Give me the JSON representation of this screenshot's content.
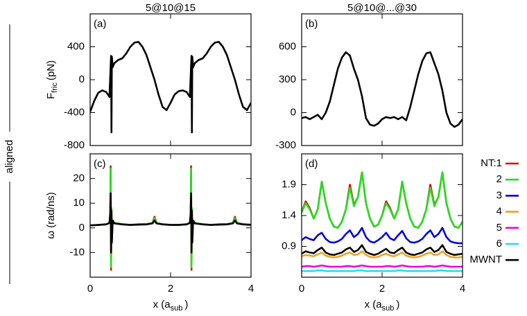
{
  "columns": [
    "5@10@15",
    "5@10@...@30"
  ],
  "row_label": "aligned",
  "chart_data": [
    {
      "type": "line",
      "label": "(a)",
      "ylabel": [
        "F",
        "fric",
        "(pN)"
      ],
      "xlim": [
        0,
        4
      ],
      "xticks": [
        0,
        2,
        4
      ],
      "show_xtick_labels": false,
      "ylim": [
        -800,
        800
      ],
      "yticks": [
        -800,
        -400,
        0,
        400
      ],
      "x": [
        0,
        0.1,
        0.2,
        0.3,
        0.4,
        0.48,
        0.52,
        0.53,
        0.54,
        0.56,
        0.6,
        0.7,
        0.8,
        0.9,
        1.0,
        1.1,
        1.2,
        1.3,
        1.4,
        1.5,
        1.6,
        1.7,
        1.8,
        1.9,
        2.0,
        2.1,
        2.2,
        2.3,
        2.4,
        2.48,
        2.52,
        2.53,
        2.54,
        2.56,
        2.6,
        2.7,
        2.8,
        2.9,
        3.0,
        3.1,
        3.2,
        3.3,
        3.4,
        3.5,
        3.6,
        3.7,
        3.8,
        3.9,
        4.0
      ],
      "series": [
        {
          "color": "#000000",
          "values": [
            -390,
            -260,
            -160,
            -130,
            -150,
            -210,
            290,
            -640,
            280,
            150,
            200,
            240,
            260,
            320,
            400,
            450,
            460,
            400,
            300,
            150,
            0,
            -180,
            -330,
            -370,
            -280,
            -180,
            -140,
            -130,
            -150,
            -210,
            290,
            -640,
            280,
            150,
            200,
            240,
            260,
            320,
            400,
            450,
            460,
            400,
            300,
            150,
            0,
            -180,
            -330,
            -370,
            -280
          ]
        }
      ]
    },
    {
      "type": "line",
      "label": "(b)",
      "xlim": [
        0,
        4
      ],
      "xticks": [
        0,
        2,
        4
      ],
      "show_xtick_labels": false,
      "ylim": [
        -300,
        900
      ],
      "yticks": [
        -300,
        0,
        300,
        600
      ],
      "x": [
        0,
        0.1,
        0.2,
        0.3,
        0.4,
        0.5,
        0.6,
        0.7,
        0.8,
        0.9,
        1.0,
        1.1,
        1.2,
        1.3,
        1.4,
        1.5,
        1.6,
        1.7,
        1.8,
        1.9,
        2.0,
        2.1,
        2.2,
        2.3,
        2.4,
        2.5,
        2.6,
        2.7,
        2.8,
        2.9,
        3.0,
        3.1,
        3.2,
        3.3,
        3.4,
        3.5,
        3.6,
        3.7,
        3.8,
        3.9,
        4.0
      ],
      "series": [
        {
          "color": "#000000",
          "values": [
            -50,
            -40,
            -60,
            -40,
            -20,
            -60,
            0,
            100,
            250,
            400,
            500,
            550,
            520,
            400,
            300,
            150,
            -50,
            -110,
            -120,
            -100,
            -60,
            -40,
            -50,
            -40,
            -60,
            -40,
            -70,
            50,
            200,
            350,
            470,
            540,
            550,
            450,
            350,
            200,
            0,
            -100,
            -130,
            -110,
            -60
          ]
        }
      ]
    },
    {
      "type": "line",
      "label": "(c)",
      "ylabel": [
        "ω (rad/ns)"
      ],
      "xlabel": [
        "x (a",
        "sub",
        ")"
      ],
      "xlim": [
        0,
        4
      ],
      "xticks": [
        0,
        2,
        4
      ],
      "show_xtick_labels": true,
      "ylim": [
        -20,
        30
      ],
      "yticks": [
        -10,
        0,
        10,
        20
      ],
      "x": [
        0,
        0.2,
        0.4,
        0.48,
        0.5,
        0.51,
        0.52,
        0.53,
        0.54,
        0.56,
        0.6,
        0.8,
        1.0,
        1.2,
        1.4,
        1.55,
        1.6,
        1.65,
        1.8,
        2.0,
        2.2,
        2.4,
        2.48,
        2.5,
        2.51,
        2.52,
        2.53,
        2.54,
        2.56,
        2.6,
        2.8,
        3.0,
        3.2,
        3.4,
        3.55,
        3.6,
        3.65,
        3.8,
        4.0
      ],
      "series": [
        {
          "color": "#e00000",
          "values": [
            1,
            1.2,
            1.5,
            2,
            5,
            25,
            -17,
            8,
            -5,
            3,
            2,
            1.5,
            1.2,
            1.5,
            1.5,
            2,
            4.5,
            2,
            1.5,
            1.2,
            1.2,
            1.5,
            2,
            5,
            25,
            -17,
            8,
            -5,
            3,
            2,
            1.5,
            1.2,
            1.5,
            1.5,
            2,
            4.5,
            2,
            1.5,
            1.3
          ]
        },
        {
          "color": "#20e020",
          "values": [
            1,
            1.2,
            1.5,
            2,
            5,
            24,
            -16,
            8,
            -5,
            3,
            2,
            1.5,
            1.2,
            1.5,
            1.5,
            2,
            4,
            2,
            1.5,
            1.2,
            1.2,
            1.5,
            2,
            5,
            24,
            -16,
            8,
            -5,
            3,
            2,
            1.5,
            1.2,
            1.5,
            1.5,
            2,
            4,
            2,
            1.5,
            1.3
          ]
        },
        {
          "color": "#000000",
          "values": [
            1,
            1.2,
            1.4,
            2,
            6,
            14,
            -10,
            7,
            -6,
            3,
            1.8,
            1.4,
            1.2,
            1.3,
            1.4,
            1.8,
            3,
            1.8,
            1.4,
            1.2,
            1.2,
            1.4,
            2,
            6,
            14,
            -10,
            7,
            -6,
            3,
            1.8,
            1.4,
            1.2,
            1.3,
            1.4,
            1.8,
            3,
            1.8,
            1.4,
            1.2
          ]
        }
      ]
    },
    {
      "type": "line",
      "label": "(d)",
      "xlabel": [
        "x (a",
        "sub",
        ")"
      ],
      "legend": "outside-right",
      "xlim": [
        0,
        4
      ],
      "xticks": [
        0,
        2,
        4
      ],
      "show_xtick_labels": true,
      "ylim": [
        0.4,
        2.4
      ],
      "yticks": [
        0.9,
        1.4,
        1.9
      ],
      "x": [
        0,
        0.1,
        0.2,
        0.3,
        0.4,
        0.5,
        0.6,
        0.7,
        0.8,
        0.9,
        1.0,
        1.1,
        1.2,
        1.3,
        1.4,
        1.5,
        1.6,
        1.7,
        1.8,
        1.9,
        2.0,
        2.1,
        2.2,
        2.3,
        2.4,
        2.5,
        2.6,
        2.7,
        2.8,
        2.9,
        3.0,
        3.1,
        3.2,
        3.3,
        3.4,
        3.5,
        3.6,
        3.7,
        3.8,
        3.9,
        4.0
      ],
      "series": [
        {
          "name": "NT:1",
          "color": "#e00000",
          "values": [
            1.45,
            1.63,
            1.52,
            1.35,
            1.5,
            1.95,
            1.6,
            1.35,
            1.22,
            1.2,
            1.3,
            1.5,
            1.9,
            1.57,
            1.7,
            2.1,
            1.6,
            1.35,
            1.22,
            1.25,
            1.4,
            1.63,
            1.52,
            1.35,
            1.5,
            1.95,
            1.6,
            1.35,
            1.22,
            1.2,
            1.3,
            1.5,
            1.9,
            1.57,
            1.7,
            2.1,
            1.6,
            1.35,
            1.22,
            1.2,
            1.3
          ]
        },
        {
          "name": "2",
          "color": "#20e020",
          "values": [
            1.45,
            1.6,
            1.5,
            1.35,
            1.5,
            1.95,
            1.6,
            1.35,
            1.22,
            1.2,
            1.3,
            1.5,
            1.85,
            1.55,
            1.7,
            2.1,
            1.6,
            1.35,
            1.22,
            1.25,
            1.4,
            1.6,
            1.5,
            1.35,
            1.5,
            1.95,
            1.6,
            1.35,
            1.22,
            1.2,
            1.3,
            1.5,
            1.85,
            1.55,
            1.7,
            2.1,
            1.6,
            1.35,
            1.22,
            1.2,
            1.3
          ]
        },
        {
          "name": "3",
          "color": "#0000e0",
          "values": [
            1.0,
            1.05,
            1.02,
            1.0,
            1.08,
            1.12,
            1.02,
            0.97,
            0.96,
            0.98,
            1.02,
            1.1,
            1.16,
            1.05,
            1.1,
            1.2,
            1.05,
            0.98,
            0.96,
            1.0,
            1.05,
            1.12,
            1.03,
            1.0,
            1.08,
            1.15,
            1.03,
            0.97,
            0.96,
            0.98,
            1.02,
            1.1,
            1.16,
            1.05,
            1.1,
            1.2,
            1.05,
            0.98,
            0.96,
            0.95,
            0.95
          ]
        },
        {
          "name": "4",
          "color": "#f0a020",
          "values": [
            0.74,
            0.76,
            0.75,
            0.74,
            0.77,
            0.8,
            0.75,
            0.73,
            0.72,
            0.73,
            0.75,
            0.78,
            0.8,
            0.76,
            0.77,
            0.82,
            0.76,
            0.73,
            0.72,
            0.73,
            0.76,
            0.78,
            0.75,
            0.74,
            0.77,
            0.8,
            0.75,
            0.73,
            0.72,
            0.73,
            0.75,
            0.78,
            0.8,
            0.76,
            0.77,
            0.82,
            0.76,
            0.73,
            0.72,
            0.72,
            0.73
          ]
        },
        {
          "name": "5",
          "color": "#f000e0",
          "values": [
            0.57,
            0.58,
            0.58,
            0.57,
            0.58,
            0.59,
            0.58,
            0.57,
            0.57,
            0.57,
            0.57,
            0.58,
            0.58,
            0.57,
            0.58,
            0.59,
            0.58,
            0.57,
            0.57,
            0.57,
            0.57,
            0.58,
            0.58,
            0.57,
            0.58,
            0.59,
            0.58,
            0.57,
            0.57,
            0.57,
            0.57,
            0.58,
            0.58,
            0.57,
            0.58,
            0.59,
            0.58,
            0.57,
            0.57,
            0.57,
            0.57
          ]
        },
        {
          "name": "6",
          "color": "#20e0e0",
          "values": [
            0.5,
            0.5,
            0.5,
            0.5,
            0.51,
            0.51,
            0.5,
            0.5,
            0.5,
            0.5,
            0.5,
            0.5,
            0.5,
            0.5,
            0.51,
            0.51,
            0.5,
            0.5,
            0.5,
            0.5,
            0.5,
            0.5,
            0.5,
            0.5,
            0.51,
            0.51,
            0.5,
            0.5,
            0.5,
            0.5,
            0.5,
            0.5,
            0.5,
            0.5,
            0.51,
            0.51,
            0.5,
            0.5,
            0.5,
            0.5,
            0.5
          ]
        },
        {
          "name": "MWNT",
          "color": "#000000",
          "values": [
            0.78,
            0.82,
            0.8,
            0.79,
            0.84,
            0.88,
            0.8,
            0.77,
            0.76,
            0.78,
            0.8,
            0.85,
            0.88,
            0.81,
            0.84,
            0.92,
            0.81,
            0.78,
            0.76,
            0.78,
            0.82,
            0.86,
            0.8,
            0.79,
            0.84,
            0.88,
            0.8,
            0.77,
            0.76,
            0.78,
            0.8,
            0.85,
            0.88,
            0.81,
            0.84,
            0.92,
            0.81,
            0.78,
            0.76,
            0.77,
            0.78
          ]
        }
      ]
    }
  ]
}
